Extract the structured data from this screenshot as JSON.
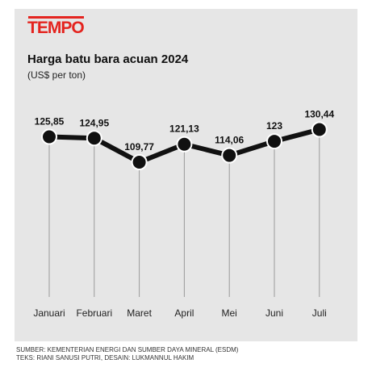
{
  "brand": {
    "logo_text": "TEMPO",
    "logo_color": "#e4241f"
  },
  "chart_data": {
    "type": "line",
    "title": "Harga batu bara acuan 2024",
    "subtitle": "(US$ per ton)",
    "categories": [
      "Januari",
      "Februari",
      "Maret",
      "April",
      "Mei",
      "Juni",
      "Juli"
    ],
    "values": [
      125.85,
      124.95,
      109.77,
      121.13,
      114.06,
      123,
      130.44
    ],
    "value_labels": [
      "125,85",
      "124,95",
      "109,77",
      "121,13",
      "114,06",
      "123",
      "130,44"
    ],
    "grid": "vertical",
    "line_color": "#111111",
    "marker_fill": "#111111",
    "marker_stroke": "#ffffff",
    "background": "#e6e6e6"
  },
  "footer": {
    "source": "SUMBER: KEMENTERIAN ENERGI DAN SUMBER DAYA MINERAL (ESDM)",
    "credits": "TEKS: RIANI SANUSI PUTRI, DESAIN: LUKMANNUL HAKIM"
  }
}
